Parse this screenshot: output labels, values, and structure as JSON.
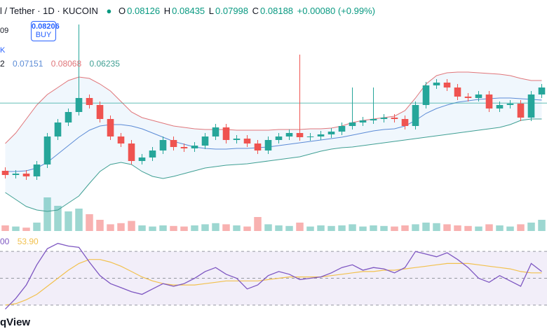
{
  "chart_data": {
    "type": "candlestick",
    "title": "l / Tether · 1D · KUCOIN",
    "legend_ohlc_labels": [
      "O",
      "H",
      "L",
      "C"
    ],
    "legend_ohlc": {
      "open": 0.08126,
      "high": 0.08435,
      "low": 0.07998,
      "close": 0.08188,
      "change": "+0.00080 (+0.99%)"
    },
    "side_labels": [
      "09",
      "K",
      "2"
    ],
    "buy_price": 0.08206,
    "buy_label": "BUY",
    "bb_values": [
      0.07151,
      0.08068,
      0.06235
    ],
    "ylim": [
      0.0636,
      0.0946
    ],
    "open": [
      0.0722,
      0.0716,
      0.0718,
      0.0714,
      0.0731,
      0.0771,
      0.0791,
      0.0806,
      0.0826,
      0.0816,
      0.0796,
      0.0771,
      0.0761,
      0.0736,
      0.0741,
      0.0751,
      0.0766,
      0.0756,
      0.0754,
      0.0758,
      0.0771,
      0.0784,
      0.0766,
      0.0768,
      0.0761,
      0.0751,
      0.0766,
      0.0771,
      0.0776,
      0.077,
      0.0771,
      0.0774,
      0.0778,
      0.0786,
      0.0791,
      0.0794,
      0.0796,
      0.0798,
      0.0796,
      0.0786,
      0.0816,
      0.0844,
      0.0848,
      0.0841,
      0.0828,
      0.0826,
      0.0831,
      0.0811,
      0.0816,
      0.0818,
      0.0798,
      0.0831
    ],
    "high": [
      0.0727,
      0.0723,
      0.0723,
      0.0736,
      0.0776,
      0.0796,
      0.0811,
      0.0931,
      0.0831,
      0.0821,
      0.0801,
      0.0776,
      0.0766,
      0.0746,
      0.0756,
      0.0771,
      0.0771,
      0.0761,
      0.0763,
      0.0776,
      0.0789,
      0.0789,
      0.0773,
      0.0773,
      0.0766,
      0.0771,
      0.0776,
      0.0781,
      0.0888,
      0.0776,
      0.0779,
      0.0783,
      0.0791,
      0.0841,
      0.0799,
      0.0841,
      0.0803,
      0.0803,
      0.0801,
      0.0821,
      0.0849,
      0.0853,
      0.0853,
      0.0846,
      0.0833,
      0.0836,
      0.0836,
      0.0821,
      0.0823,
      0.0823,
      0.0836,
      0.0846
    ],
    "low": [
      0.0711,
      0.0711,
      0.0709,
      0.0709,
      0.0726,
      0.0766,
      0.0786,
      0.0801,
      0.0811,
      0.0791,
      0.0766,
      0.0756,
      0.0731,
      0.0731,
      0.0736,
      0.0746,
      0.0751,
      0.0749,
      0.0749,
      0.0753,
      0.0766,
      0.0761,
      0.0761,
      0.0756,
      0.0746,
      0.0746,
      0.0761,
      0.0766,
      0.0765,
      0.0765,
      0.0766,
      0.0769,
      0.0773,
      0.0781,
      0.0786,
      0.0789,
      0.0791,
      0.0791,
      0.0781,
      0.0781,
      0.0811,
      0.0839,
      0.0836,
      0.0823,
      0.0821,
      0.0821,
      0.0806,
      0.0806,
      0.0811,
      0.0793,
      0.0793,
      0.0826
    ],
    "close": [
      0.0716,
      0.0718,
      0.0714,
      0.0731,
      0.0771,
      0.0791,
      0.0806,
      0.0826,
      0.0816,
      0.0796,
      0.0771,
      0.0761,
      0.0736,
      0.0741,
      0.0751,
      0.0766,
      0.0756,
      0.0754,
      0.0758,
      0.0771,
      0.0784,
      0.0766,
      0.0768,
      0.0761,
      0.0751,
      0.0766,
      0.0771,
      0.0776,
      0.077,
      0.0771,
      0.0774,
      0.0778,
      0.0786,
      0.0791,
      0.0794,
      0.0796,
      0.0798,
      0.0796,
      0.0786,
      0.0816,
      0.0844,
      0.0848,
      0.0841,
      0.0828,
      0.0826,
      0.0831,
      0.0811,
      0.0816,
      0.0818,
      0.0798,
      0.0831,
      0.0841
    ],
    "bb_upper": [
      0.0761,
      0.0776,
      0.0796,
      0.0816,
      0.0831,
      0.0841,
      0.0851,
      0.0856,
      0.0854,
      0.0846,
      0.0836,
      0.0821,
      0.0806,
      0.0798,
      0.0794,
      0.079,
      0.0786,
      0.0784,
      0.0782,
      0.0781,
      0.0781,
      0.0781,
      0.078,
      0.078,
      0.078,
      0.078,
      0.0781,
      0.0781,
      0.0781,
      0.0782,
      0.0782,
      0.0783,
      0.0786,
      0.0791,
      0.0794,
      0.0796,
      0.0798,
      0.08,
      0.0808,
      0.0826,
      0.0846,
      0.0858,
      0.0862,
      0.0863,
      0.0863,
      0.0862,
      0.0861,
      0.086,
      0.0858,
      0.0854,
      0.0851,
      0.0851
    ],
    "bb_middle": [
      0.0721,
      0.0721,
      0.0722,
      0.0726,
      0.0734,
      0.0746,
      0.0758,
      0.077,
      0.078,
      0.0786,
      0.0788,
      0.0788,
      0.0786,
      0.0782,
      0.0776,
      0.077,
      0.0764,
      0.076,
      0.0756,
      0.0754,
      0.0753,
      0.0753,
      0.0754,
      0.0754,
      0.0755,
      0.0756,
      0.0758,
      0.076,
      0.0762,
      0.0764,
      0.0766,
      0.0768,
      0.077,
      0.0773,
      0.0776,
      0.0779,
      0.0781,
      0.0782,
      0.0786,
      0.0794,
      0.0804,
      0.0811,
      0.0816,
      0.082,
      0.0822,
      0.0824,
      0.0825,
      0.0826,
      0.0826,
      0.0825,
      0.0824,
      0.0823
    ],
    "bb_lower": [
      0.0691,
      0.0681,
      0.0671,
      0.0666,
      0.0664,
      0.0666,
      0.0676,
      0.0686,
      0.0704,
      0.0721,
      0.0731,
      0.0734,
      0.0731,
      0.0721,
      0.0714,
      0.0711,
      0.0714,
      0.0718,
      0.0722,
      0.0726,
      0.0728,
      0.073,
      0.0731,
      0.0732,
      0.0734,
      0.0736,
      0.0738,
      0.074,
      0.0742,
      0.0746,
      0.075,
      0.0753,
      0.0755,
      0.0756,
      0.0758,
      0.076,
      0.0762,
      0.0764,
      0.0766,
      0.0768,
      0.077,
      0.0772,
      0.0774,
      0.0776,
      0.0778,
      0.078,
      0.0782,
      0.0784,
      0.0788,
      0.0794,
      0.0796,
      0.0796
    ],
    "bb_colors": {
      "upper": "#e0767a",
      "middle": "#5b8bd6",
      "lower": "#3f9f93",
      "fill": "rgba(70,150,230,0.08)"
    },
    "up_color": "#26a69a",
    "down_color": "#ef5350",
    "volume": [
      10,
      8,
      6,
      15,
      60,
      45,
      35,
      40,
      30,
      20,
      12,
      14,
      18,
      10,
      8,
      10,
      9,
      8,
      10,
      12,
      14,
      12,
      10,
      8,
      25,
      12,
      10,
      9,
      15,
      8,
      10,
      9,
      10,
      12,
      8,
      10,
      9,
      8,
      10,
      12,
      15,
      14,
      12,
      10,
      9,
      8,
      12,
      10,
      8,
      12,
      15,
      20
    ],
    "vlim": [
      0,
      100
    ],
    "rsi": {
      "labels": [
        "00",
        "53.90"
      ],
      "ylim": [
        20,
        80
      ],
      "levels": [
        70,
        50,
        30
      ],
      "color": "#7e57c2",
      "ma_color": "#f2c14e",
      "values": [
        27,
        35,
        45,
        60,
        72,
        76,
        74,
        73,
        62,
        52,
        46,
        43,
        40,
        38,
        42,
        46,
        44,
        46,
        50,
        55,
        58,
        53,
        50,
        42,
        45,
        52,
        55,
        53,
        49,
        50,
        51,
        54,
        58,
        60,
        56,
        58,
        57,
        54,
        58,
        70,
        68,
        66,
        69,
        64,
        58,
        50,
        47,
        52,
        48,
        44,
        61,
        55
      ],
      "ma": [
        30,
        31,
        34,
        38,
        44,
        50,
        56,
        61,
        64,
        64,
        62,
        59,
        55,
        51,
        48,
        46,
        45,
        45,
        45,
        46,
        47,
        48,
        48,
        48,
        48,
        49,
        50,
        51,
        51,
        51,
        51,
        52,
        53,
        54,
        55,
        55,
        56,
        56,
        57,
        58,
        59,
        60,
        61,
        61,
        61,
        60,
        59,
        58,
        57,
        55,
        54,
        54
      ]
    },
    "watermark": "qView"
  }
}
